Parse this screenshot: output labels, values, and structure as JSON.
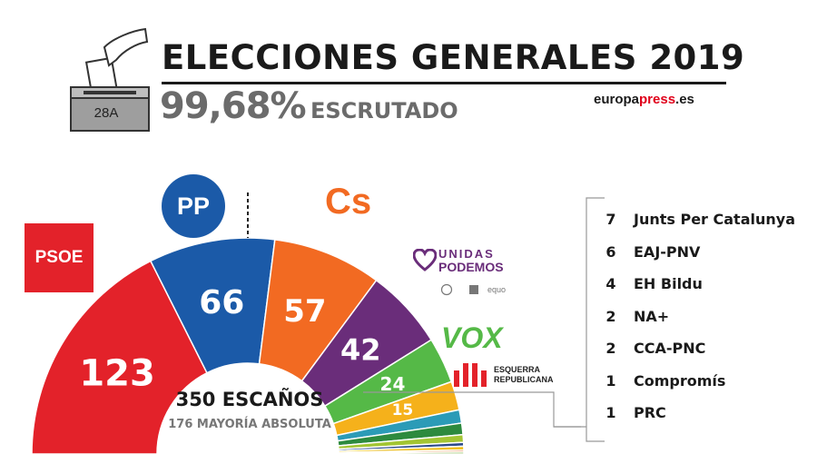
{
  "header": {
    "title": "ELECCIONES GENERALES 2019",
    "scrutiny_value": "99,68%",
    "scrutiny_label": "ESCRUTADO",
    "brand_a": "europa",
    "brand_b": "press",
    "brand_c": ".es",
    "ballot_label": "28A"
  },
  "center": {
    "total": "350 ESCAÑOS",
    "majority": "176 MAYORÍA ABSOLUTA"
  },
  "logos": {
    "psoe": "PSOE",
    "pp": "PP",
    "cs": "Cs",
    "up_line1": "UNIDAS",
    "up_line2": "PODEMOS",
    "up_line3": "equo",
    "vox": "VOX",
    "erc_line1": "ESQUERRA",
    "erc_line2": "REPUBLICANA"
  },
  "chart_data": {
    "type": "pie",
    "total_seats": 350,
    "majority": 176,
    "series": [
      {
        "label": "123",
        "value": 123,
        "color": "#e3222a"
      },
      {
        "label": "66",
        "value": 66,
        "color": "#1b5aa8"
      },
      {
        "label": "57",
        "value": 57,
        "color": "#f26a22"
      },
      {
        "label": "42",
        "value": 42,
        "color": "#6a2d7a"
      },
      {
        "label": "24",
        "value": 24,
        "color": "#55b947"
      },
      {
        "label": "15",
        "value": 15,
        "color": "#f5b11b"
      },
      {
        "label": "",
        "value": 7,
        "color": "#2b9bb7"
      },
      {
        "label": "",
        "value": 6,
        "color": "#2d8a3e"
      },
      {
        "label": "",
        "value": 4,
        "color": "#a3c533"
      },
      {
        "label": "",
        "value": 2,
        "color": "#2c4a8a"
      },
      {
        "label": "",
        "value": 2,
        "color": "#f0c020"
      },
      {
        "label": "",
        "value": 1,
        "color": "#e5782a"
      },
      {
        "label": "",
        "value": 1,
        "color": "#7db540"
      }
    ],
    "others": [
      {
        "value": "7",
        "name": "Junts Per Catalunya"
      },
      {
        "value": "6",
        "name": "EAJ-PNV"
      },
      {
        "value": "4",
        "name": "EH Bildu"
      },
      {
        "value": "2",
        "name": "NA+"
      },
      {
        "value": "2",
        "name": "CCA-PNC"
      },
      {
        "value": "1",
        "name": "Compromís"
      },
      {
        "value": "1",
        "name": "PRC"
      }
    ]
  }
}
